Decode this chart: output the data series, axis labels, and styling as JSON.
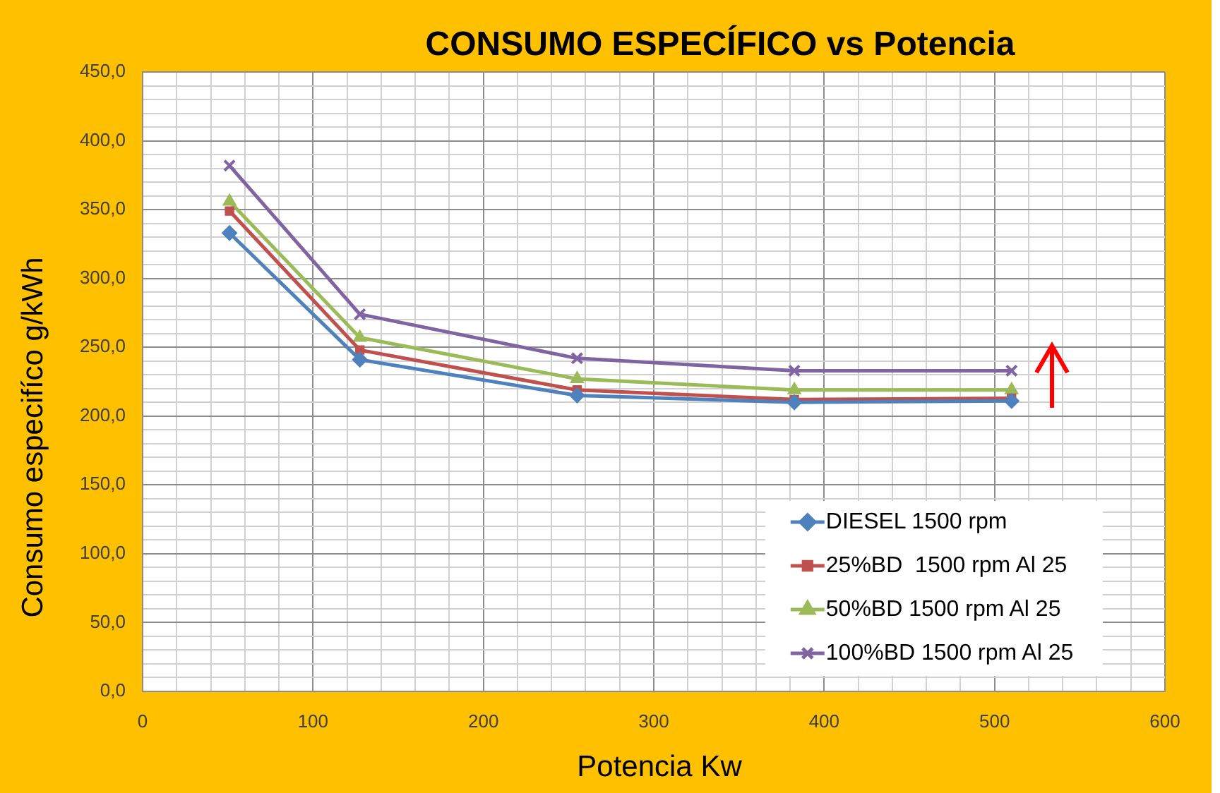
{
  "chart_data": {
    "type": "line",
    "title": "CONSUMO ESPECÍFICO vs Potencia",
    "xlabel": "Potencia Kw",
    "ylabel": "Consumo especifíco g/kWh",
    "x": [
      51,
      127.5,
      255,
      382.5,
      510
    ],
    "series": [
      {
        "name": "DIESEL 1500 rpm",
        "color": "#4f81bd",
        "marker": "diamond",
        "values": [
          333,
          241,
          215,
          210,
          211
        ]
      },
      {
        "name": "25%BD  1500 rpm Al 25",
        "color": "#c0504d",
        "marker": "square",
        "values": [
          349,
          248,
          219,
          212,
          213
        ]
      },
      {
        "name": "50%BD 1500 rpm Al 25",
        "color": "#9bbb59",
        "marker": "triangle",
        "values": [
          356,
          257,
          227,
          219,
          219
        ]
      },
      {
        "name": "100%BD 1500 rpm Al 25",
        "color": "#8064a2",
        "marker": "cross",
        "values": [
          382,
          274,
          242,
          233,
          233
        ]
      }
    ],
    "xlim": [
      0,
      600
    ],
    "xticks": [
      0,
      {
        "value": 20,
        "label": null
      },
      {
        "value": 40,
        "label": null
      },
      {
        "value": 60,
        "label": null
      },
      {
        "value": 80,
        "label": null
      },
      100,
      {
        "value": 120,
        "label": null
      },
      {
        "value": 140,
        "label": null
      },
      {
        "value": 160,
        "label": null
      },
      {
        "value": 180,
        "label": null
      },
      200,
      {
        "value": 220,
        "label": null
      },
      {
        "value": 240,
        "label": null
      },
      {
        "value": 260,
        "label": null
      },
      {
        "value": 280,
        "label": null
      },
      300,
      {
        "value": 320,
        "label": null
      },
      {
        "value": 340,
        "label": null
      },
      {
        "value": 360,
        "label": null
      },
      {
        "value": 380,
        "label": null
      },
      400,
      {
        "value": 420,
        "label": null
      },
      {
        "value": 440,
        "label": null
      },
      {
        "value": 460,
        "label": null
      },
      {
        "value": 480,
        "label": null
      },
      500,
      {
        "value": 520,
        "label": null
      },
      {
        "value": 540,
        "label": null
      },
      {
        "value": 560,
        "label": null
      },
      {
        "value": 580,
        "label": null
      },
      600
    ],
    "ylim": [
      0,
      450
    ],
    "yticks": [
      {
        "value": 0,
        "label": "0,0"
      },
      {
        "value": 10,
        "label": null
      },
      {
        "value": 20,
        "label": null
      },
      {
        "value": 30,
        "label": null
      },
      {
        "value": 40,
        "label": null
      },
      {
        "value": 50,
        "label": "50,0"
      },
      {
        "value": 60,
        "label": null
      },
      {
        "value": 70,
        "label": null
      },
      {
        "value": 80,
        "label": null
      },
      {
        "value": 90,
        "label": null
      },
      {
        "value": 100,
        "label": "100,0"
      },
      {
        "value": 110,
        "label": null
      },
      {
        "value": 120,
        "label": null
      },
      {
        "value": 130,
        "label": null
      },
      {
        "value": 140,
        "label": null
      },
      {
        "value": 150,
        "label": "150,0"
      },
      {
        "value": 160,
        "label": null
      },
      {
        "value": 170,
        "label": null
      },
      {
        "value": 180,
        "label": null
      },
      {
        "value": 190,
        "label": null
      },
      {
        "value": 200,
        "label": "200,0"
      },
      {
        "value": 210,
        "label": null
      },
      {
        "value": 220,
        "label": null
      },
      {
        "value": 230,
        "label": null
      },
      {
        "value": 240,
        "label": null
      },
      {
        "value": 250,
        "label": "250,0"
      },
      {
        "value": 260,
        "label": null
      },
      {
        "value": 270,
        "label": null
      },
      {
        "value": 280,
        "label": null
      },
      {
        "value": 290,
        "label": null
      },
      {
        "value": 300,
        "label": "300,0"
      },
      {
        "value": 310,
        "label": null
      },
      {
        "value": 320,
        "label": null
      },
      {
        "value": 330,
        "label": null
      },
      {
        "value": 340,
        "label": null
      },
      {
        "value": 350,
        "label": "350,0"
      },
      {
        "value": 360,
        "label": null
      },
      {
        "value": 370,
        "label": null
      },
      {
        "value": 380,
        "label": null
      },
      {
        "value": 390,
        "label": null
      },
      {
        "value": 400,
        "label": "400,0"
      },
      {
        "value": 410,
        "label": null
      },
      {
        "value": 420,
        "label": null
      },
      {
        "value": 430,
        "label": null
      },
      {
        "value": 440,
        "label": null
      },
      {
        "value": 450,
        "label": "450,0"
      }
    ],
    "grid": true,
    "legend": "bottom right",
    "line_style": "solid"
  }
}
